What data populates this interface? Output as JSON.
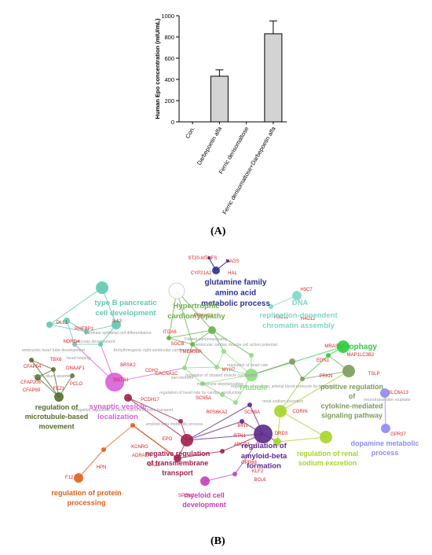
{
  "panel_a": {
    "label": "(A)",
    "chart_data": {
      "type": "bar",
      "categories": [
        "Con.",
        "Darbepoetin alfa",
        "Ferric derisomaltose",
        "Ferric derisomaltose+Darbepoetin alfa"
      ],
      "values": [
        0,
        430,
        0,
        830
      ],
      "error": [
        0,
        60,
        0,
        120
      ],
      "ylabel": "Human Epo concentration (mIU/mL)",
      "ylim": [
        0,
        1000
      ],
      "yticks": [
        "0",
        "200",
        "400",
        "600",
        "800",
        "1000"
      ],
      "bar_color": "#d3d3d3"
    }
  },
  "panel_b": {
    "label": "(B)",
    "clusters": [
      {
        "name": "glutamine family amino acid metabolic process",
        "lines": [
          "glutamine family",
          "amino acid",
          "metabolic process"
        ],
        "color": "#2e3192"
      },
      {
        "name": "type B pancreatic cell development",
        "lines": [
          "type B pancreatic",
          "cell development"
        ],
        "color": "#5fc9b0"
      },
      {
        "name": "Hypertrophic cardiomyopathy",
        "lines": [
          "Hypertrophic",
          "cardiomyopathy"
        ],
        "color": "#6ab04c"
      },
      {
        "name": "DNA",
        "lines": [
          "DNA"
        ],
        "color": "#7fd6c8"
      },
      {
        "name": "replication-dependent chromatin assembly",
        "lines": [
          "replication-dependent",
          "chromatin assembly"
        ],
        "color": "#7fd6c8"
      },
      {
        "name": "Mitophagy",
        "lines": [
          "Mitophagy"
        ],
        "color": "#2ecc40"
      },
      {
        "name": "positive regulation of cytokine-mediated signaling pathway",
        "lines": [
          "positive regulation",
          "of",
          "cytokine-mediated",
          "signaling pathway"
        ],
        "color": "#7c9c5a"
      },
      {
        "name": "T-tubule",
        "lines": [
          "T-tubule"
        ],
        "color": "#8fdc84"
      },
      {
        "name": "synaptic vesicle localization",
        "lines": [
          "synaptic vesicle",
          "localization"
        ],
        "color": "#d65fd9"
      },
      {
        "name": "regulation of microtubule-based movement",
        "lines": [
          "regulation of",
          "microtubule-based",
          "movement"
        ],
        "color": "#556b2f"
      },
      {
        "name": "dopamine metabolic process",
        "lines": [
          "dopamine metabolic",
          "process"
        ],
        "color": "#8c8cf0"
      },
      {
        "name": "regulation of renal sodium excretion",
        "lines": [
          "regulation of renal",
          "sodium excretion"
        ],
        "color": "#a6d62a"
      },
      {
        "name": "regulation of amyloid-beta formation",
        "lines": [
          "regulation of",
          "amyloid-beta",
          "formation"
        ],
        "color": "#5b2a8a"
      },
      {
        "name": "negative regulation of transmembrane transport",
        "lines": [
          "negative regulation",
          "of transmembrane",
          "transport"
        ],
        "color": "#a0204a"
      },
      {
        "name": "regulation of protein processing",
        "lines": [
          "regulation of protein",
          "processing"
        ],
        "color": "#e0601a"
      },
      {
        "name": "myeloid cell development",
        "lines": [
          "myeloid cell",
          "development"
        ],
        "color": "#c43fb5"
      }
    ],
    "genes": [
      "ST20-MTHFS",
      "NAGS",
      "CYP21A2",
      "HAL",
      "PRKAG2",
      "H3C7",
      "H3C11",
      "H4C12",
      "DLL1",
      "IL13",
      "RHEBP1",
      "ITGA6",
      "NDRG4",
      "SGCB",
      "TMEM38A",
      "TBX6",
      "DNAAF1",
      "CFAP54",
      "CFAP206",
      "CFAP69",
      "FEZ1",
      "BRSK2",
      "CDH2",
      "SNTB1",
      "PCLO",
      "PCDH17",
      "CACNA1C",
      "MYH7",
      "SCN5A",
      "RPS6KA2",
      "SCN8A",
      "EDN1",
      "MRAS",
      "MAP1LC3B2",
      "TSLP",
      "PRKN",
      "SLC6A13",
      "GPR37",
      "CORIN",
      "DRD3",
      "BIN1",
      "RTN1",
      "ABCG1",
      "EPO",
      "KCNRG",
      "ADRA2A",
      "OAZ3",
      "HPN",
      "F12",
      "GPR68",
      "KLF2",
      "BCL6",
      "SPON1"
    ],
    "terms": [
      "embryonic heart tube development",
      "glandular epithelial cell differentiation",
      "pancreas development",
      "Arrhythmogenic right ventricular cardiomyopathy",
      "Dilated cardiomyopathy",
      "ventricular cardiac muscle cell action potential",
      "heart looping",
      "motile cilium assembly",
      "sarcolemma",
      "regulation of heart rate",
      "regulation of striated muscle contraction",
      "membrane depolarization",
      "regulation of heart rate by cardiac conduction",
      "regulation of systemic arterial blood pressure by hormone",
      "renal sodium excretion",
      "neurotransmitter reuptake",
      "negative regulation of cation transmembrane transport",
      "amyloid-beta metabolic process"
    ]
  }
}
